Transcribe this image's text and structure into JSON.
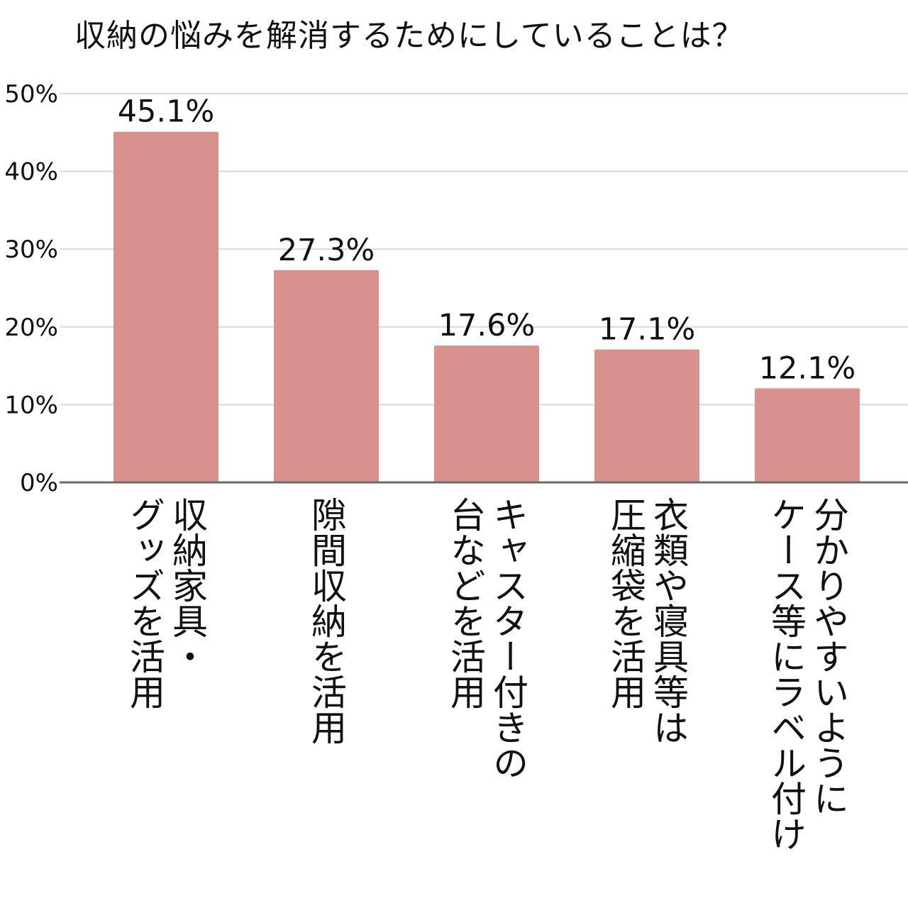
{
  "chart_data": {
    "type": "bar",
    "title": "収納の悩みを解消するためにしていることは？",
    "categories": [
      [
        "収納家具・",
        "グッズを活用"
      ],
      [
        "隙間収納を活用"
      ],
      [
        "キャスター付きの",
        "台などを活用"
      ],
      [
        "衣類や寝具等は",
        "圧縮袋を活用"
      ],
      [
        "分かりやすいように",
        "ケース等にラベル付け"
      ]
    ],
    "values": [
      45.1,
      27.3,
      17.6,
      17.1,
      12.1
    ],
    "value_labels": [
      "45.1%",
      "27.3%",
      "17.6%",
      "17.1%",
      "12.1%"
    ],
    "ylim": [
      0,
      50
    ],
    "yticks": [
      0,
      10,
      20,
      30,
      40,
      50
    ],
    "ytick_labels": [
      "0%",
      "10%",
      "20%",
      "30%",
      "40%",
      "50%"
    ],
    "grid": true,
    "legend": "none",
    "bar_color": "#d9918d",
    "grid_color": "#d9d9d9",
    "axis_color": "#6b6b6b"
  }
}
